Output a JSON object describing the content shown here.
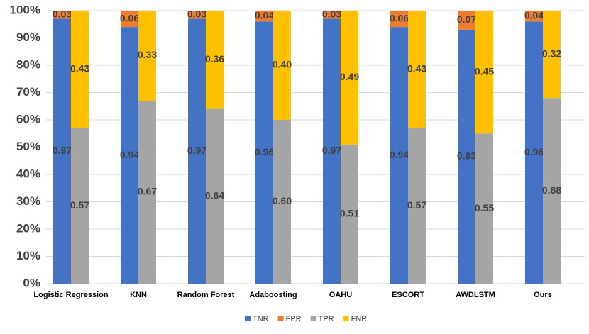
{
  "chart_data": {
    "type": "bar",
    "categories": [
      "Logistic Regression",
      "KNN",
      "Random Forest",
      "Adaboosting",
      "OAHU",
      "ESCORT",
      "AWDLSTM",
      "Ours"
    ],
    "series": [
      {
        "name": "TNR",
        "color": "#4472c4",
        "values": [
          97,
          94,
          97,
          96,
          97,
          94,
          93,
          96
        ],
        "value_labels": [
          "0.97",
          "0.94",
          "0.97",
          "0.96",
          "0.97",
          "0.94",
          "0.93",
          "0.96"
        ]
      },
      {
        "name": "FPR",
        "color": "#ed7d31",
        "values": [
          3,
          6,
          3,
          4,
          3,
          6,
          7,
          4
        ],
        "value_labels": [
          "0.03",
          "0.06",
          "0.03",
          "0.04",
          "0.03",
          "0.06",
          "0.07",
          "0.04"
        ]
      },
      {
        "name": "TPR",
        "color": "#a5a5a5",
        "values": [
          57,
          67,
          64,
          60,
          51,
          57,
          55,
          68
        ],
        "value_labels": [
          "0.57",
          "0.67",
          "0.64",
          "0.60",
          "0.51",
          "0.57",
          "0.55",
          "0.68"
        ]
      },
      {
        "name": "FNR",
        "color": "#ffc000",
        "values": [
          43,
          33,
          36,
          40,
          49,
          43,
          45,
          32
        ],
        "value_labels": [
          "0.43",
          "0.33",
          "0.36",
          "0.40",
          "0.49",
          "0.43",
          "0.45",
          "0.32"
        ]
      }
    ],
    "ylim": [
      0,
      100
    ],
    "yticks": [
      {
        "value": 0,
        "label": "0%"
      },
      {
        "value": 10,
        "label": "10%"
      },
      {
        "value": 20,
        "label": "20%"
      },
      {
        "value": 30,
        "label": "30%"
      },
      {
        "value": 40,
        "label": "40%"
      },
      {
        "value": 50,
        "label": "50%"
      },
      {
        "value": 60,
        "label": "60%"
      },
      {
        "value": 70,
        "label": "70%"
      },
      {
        "value": 80,
        "label": "80%"
      },
      {
        "value": 90,
        "label": "90%"
      },
      {
        "value": 100,
        "label": "100%"
      }
    ],
    "grid": true,
    "legend": "bottom"
  }
}
